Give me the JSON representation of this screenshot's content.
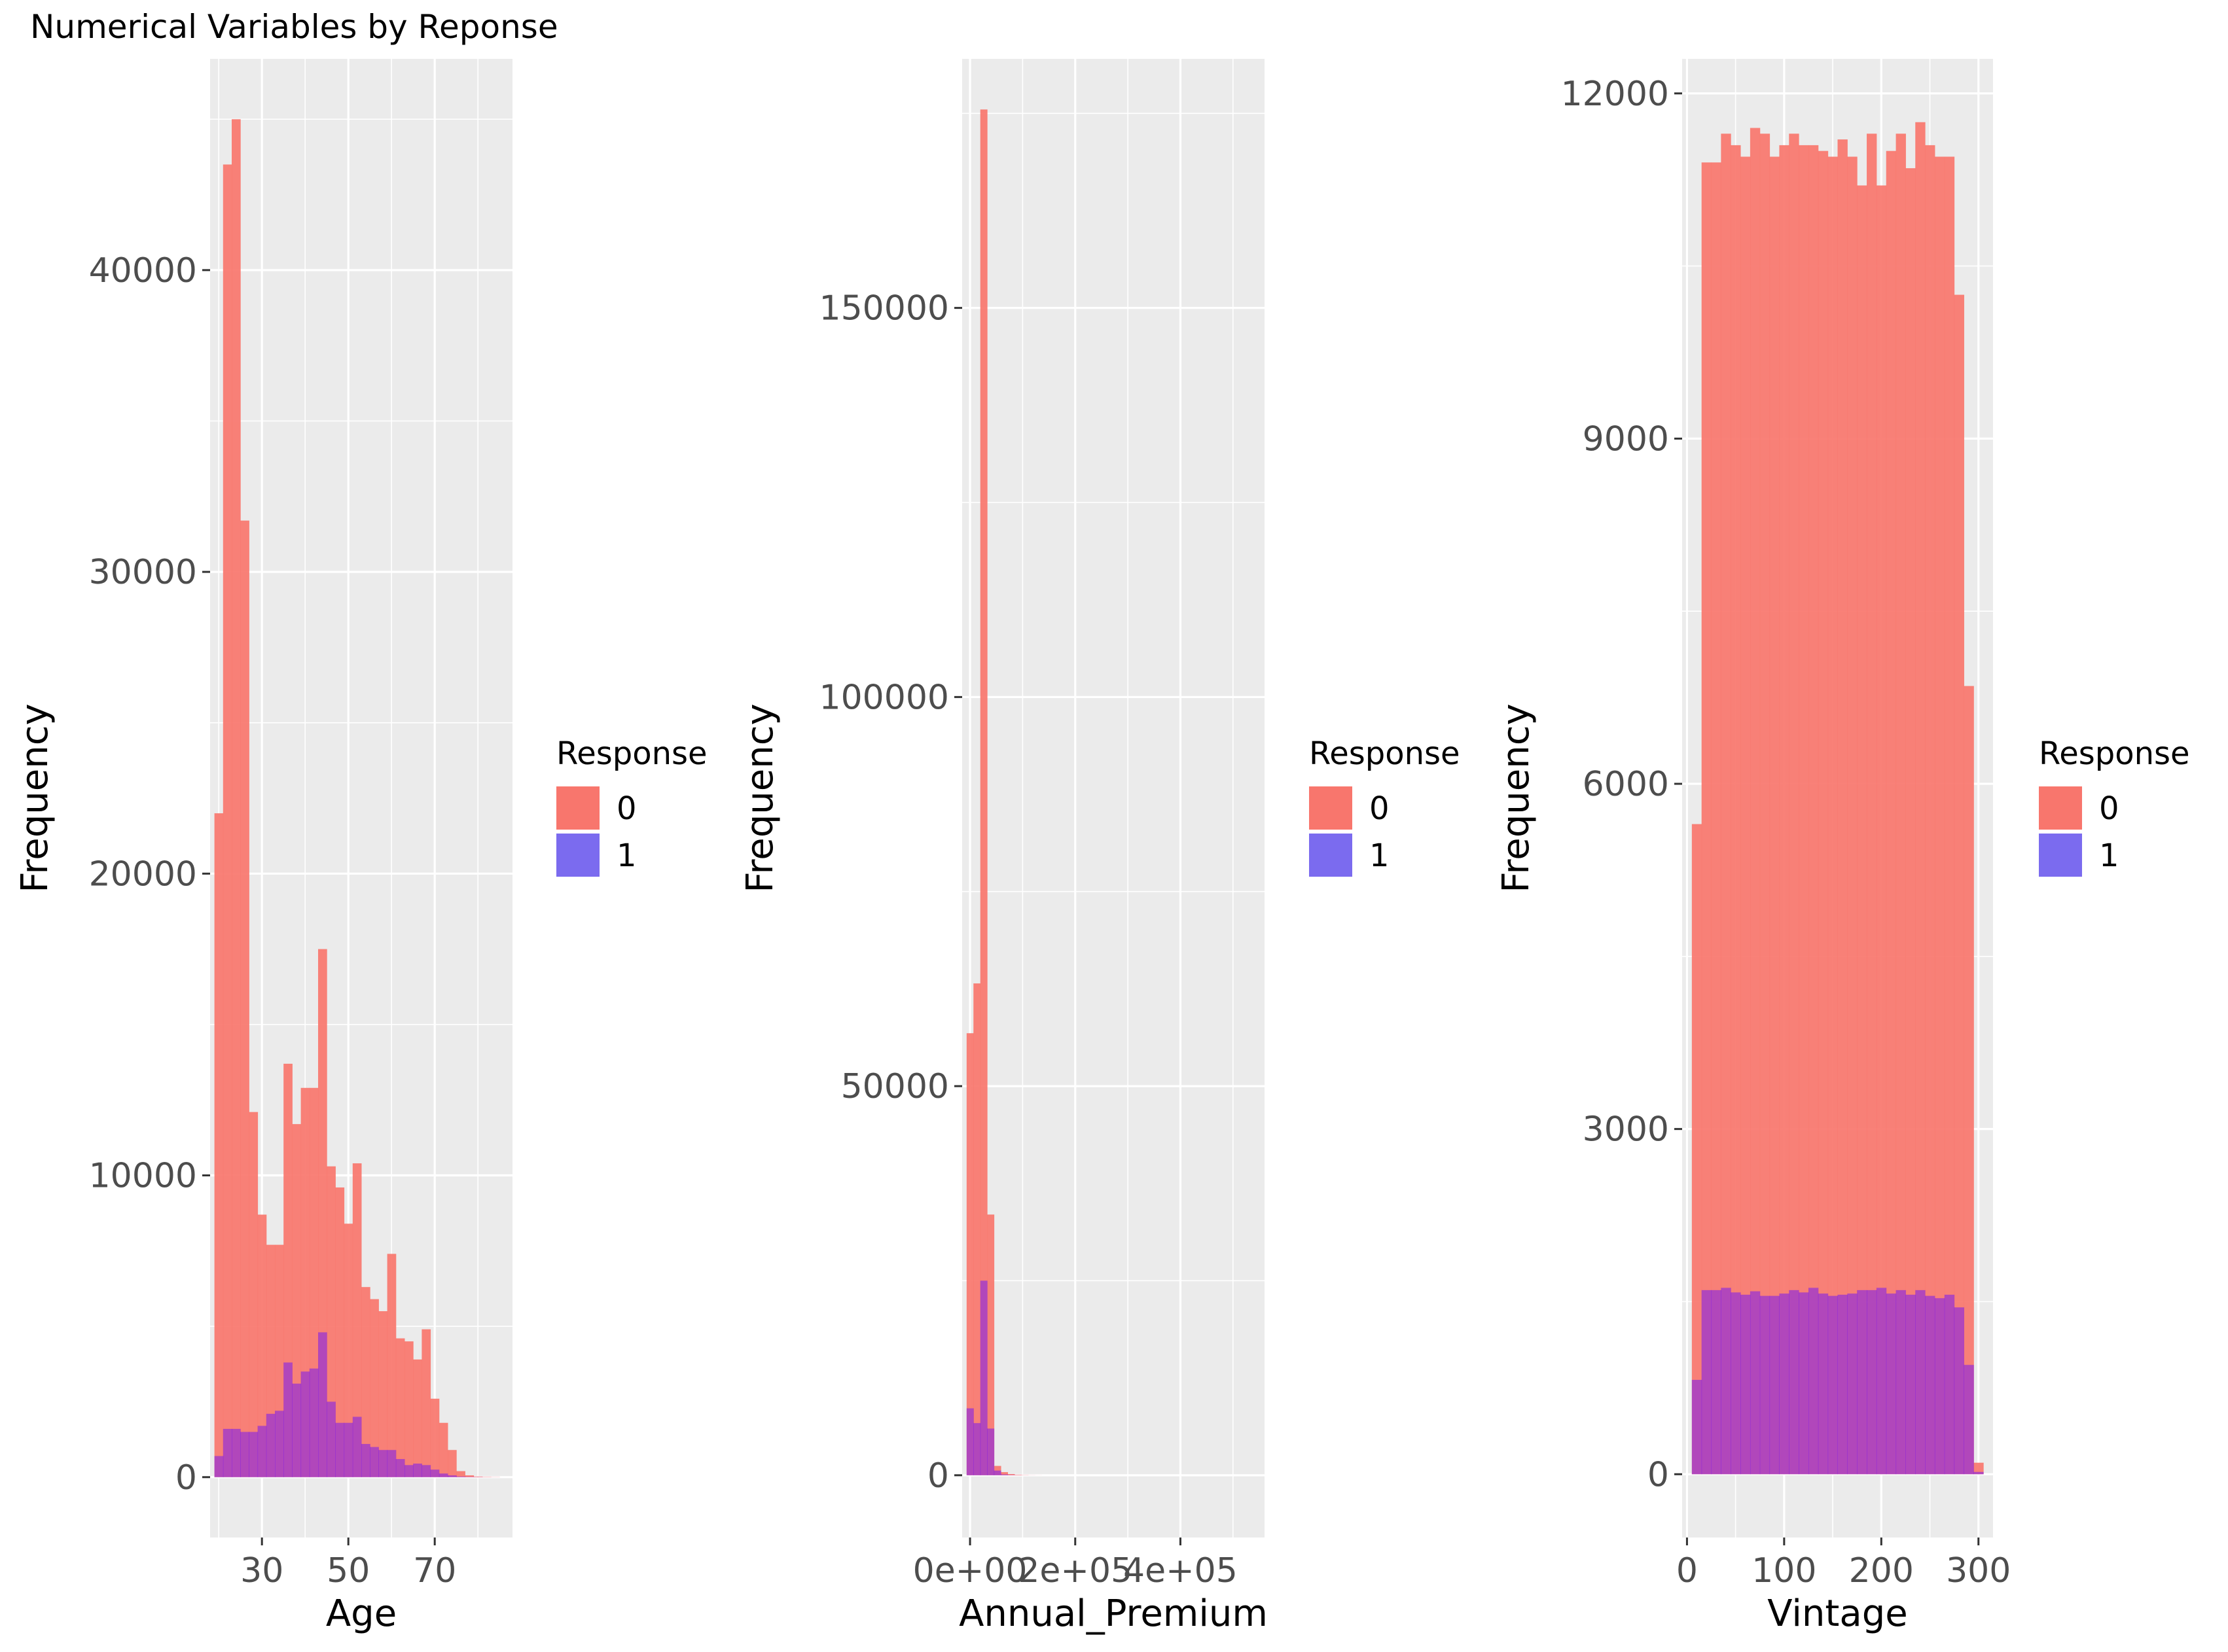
{
  "title": "Numerical Variables by Reponse",
  "colors": {
    "response_0": "#F8766D",
    "response_1": "#7B6BEF",
    "overlap": "#7A3DB8",
    "panel_bg": "#EBEBEB",
    "grid": "#FFFFFF"
  },
  "chart_data": [
    {
      "type": "bar",
      "title": "",
      "xlabel": "Age",
      "ylabel": "Frequency",
      "legend": {
        "title": "Response",
        "position": "right",
        "entries": [
          "0",
          "1"
        ]
      },
      "x_ticks": [
        "30",
        "50",
        "70"
      ],
      "y_ticks": [
        "0",
        "10000",
        "20000",
        "30000",
        "40000"
      ],
      "xlim": [
        18,
        88
      ],
      "ylim": [
        -2000,
        47000
      ],
      "x": [
        20,
        22,
        24,
        26,
        28,
        30,
        32,
        34,
        36,
        38,
        40,
        42,
        44,
        46,
        48,
        50,
        52,
        54,
        56,
        58,
        60,
        62,
        64,
        66,
        68,
        70,
        72,
        74,
        76,
        78,
        80,
        82,
        84
      ],
      "series": [
        {
          "name": "0",
          "values": [
            22000,
            43500,
            45000,
            31700,
            12100,
            8700,
            7700,
            7700,
            13700,
            11700,
            12900,
            12900,
            17500,
            10300,
            9600,
            8400,
            10400,
            6300,
            5900,
            5500,
            7400,
            4600,
            4500,
            3900,
            4900,
            2600,
            1800,
            900,
            200,
            60,
            20,
            10,
            5
          ]
        },
        {
          "name": "1",
          "values": [
            700,
            1600,
            1600,
            1500,
            1500,
            1700,
            2100,
            2200,
            3800,
            3100,
            3500,
            3600,
            4800,
            2500,
            1800,
            1800,
            2000,
            1100,
            1000,
            900,
            900,
            600,
            400,
            450,
            400,
            250,
            120,
            60,
            20,
            10,
            5,
            2,
            1
          ]
        }
      ]
    },
    {
      "type": "bar",
      "title": "",
      "xlabel": "Annual_Premium",
      "ylabel": "Frequency",
      "legend": {
        "title": "Response",
        "position": "right",
        "entries": [
          "0",
          "1"
        ]
      },
      "x_ticks": [
        "0e+00",
        "2e+05",
        "4e+05"
      ],
      "y_ticks": [
        "0",
        "50000",
        "100000",
        "150000"
      ],
      "xlim": [
        -15000,
        560000
      ],
      "ylim": [
        -8000,
        182000
      ],
      "x": [
        0,
        13000,
        26000,
        39000,
        52000,
        65000,
        78000,
        91000,
        104000,
        117000,
        130000
      ],
      "series": [
        {
          "name": "0",
          "values": [
            56800,
            63200,
            175500,
            33500,
            1200,
            400,
            150,
            60,
            25,
            10,
            5
          ]
        },
        {
          "name": "1",
          "values": [
            8600,
            6700,
            25000,
            6000,
            600,
            100,
            30,
            10,
            5,
            2,
            1
          ]
        }
      ]
    },
    {
      "type": "bar",
      "title": "",
      "xlabel": "Vintage",
      "ylabel": "Frequency",
      "legend": {
        "title": "Response",
        "position": "right",
        "entries": [
          "0",
          "1"
        ]
      },
      "x_ticks": [
        "0",
        "100",
        "200",
        "300"
      ],
      "y_ticks": [
        "0",
        "3000",
        "6000",
        "9000",
        "12000"
      ],
      "xlim": [
        -5,
        315
      ],
      "ylim": [
        -550,
        12300
      ],
      "x": [
        10,
        20,
        30,
        40,
        50,
        60,
        70,
        80,
        90,
        100,
        110,
        120,
        130,
        140,
        150,
        160,
        170,
        180,
        190,
        200,
        210,
        220,
        230,
        240,
        250,
        260,
        270,
        280,
        290,
        300
      ],
      "series": [
        {
          "name": "0",
          "values": [
            5650,
            11400,
            11400,
            11650,
            11550,
            11450,
            11700,
            11650,
            11450,
            11550,
            11650,
            11550,
            11550,
            11500,
            11450,
            11600,
            11450,
            11200,
            11650,
            11200,
            11500,
            11650,
            11350,
            11750,
            11550,
            11450,
            11450,
            10250,
            6850,
            100
          ]
        },
        {
          "name": "1",
          "values": [
            820,
            1600,
            1600,
            1620,
            1580,
            1560,
            1590,
            1550,
            1550,
            1570,
            1600,
            1580,
            1620,
            1570,
            1550,
            1560,
            1570,
            1600,
            1600,
            1620,
            1570,
            1600,
            1560,
            1600,
            1550,
            1530,
            1560,
            1450,
            950,
            20
          ]
        }
      ]
    }
  ]
}
